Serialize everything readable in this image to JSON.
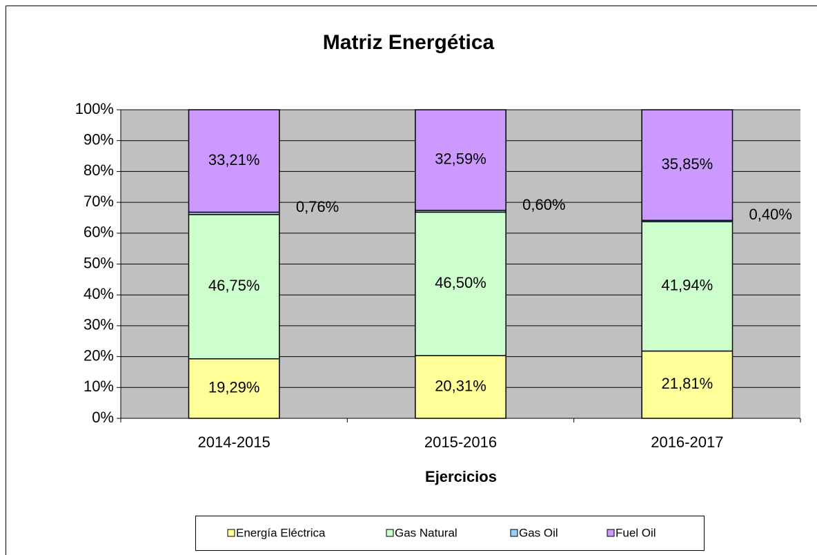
{
  "chart_data": {
    "type": "stacked_bar",
    "title": "Matriz Energética",
    "x_label": "Ejercicios",
    "categories": [
      "2014-2015",
      "2015-2016",
      "2016-2017"
    ],
    "series": [
      {
        "name": "Energía Eléctrica",
        "color": "#ffff99",
        "values": [
          19.29,
          20.31,
          21.81
        ],
        "value_labels": [
          "19,29%",
          "20,31%",
          "21,81%"
        ]
      },
      {
        "name": "Gas Natural",
        "color": "#ccffcc",
        "values": [
          46.75,
          46.5,
          41.94
        ],
        "value_labels": [
          "46,75%",
          "46,50%",
          "41,94%"
        ]
      },
      {
        "name": "Gas Oil",
        "color": "#99ccff",
        "values": [
          0.76,
          0.6,
          0.4
        ],
        "value_labels": [
          "0,76%",
          "0,60%",
          "0,40%"
        ]
      },
      {
        "name": "Fuel Oil",
        "color": "#cc99ff",
        "values": [
          33.21,
          32.59,
          35.85
        ],
        "value_labels": [
          "33,21%",
          "32,59%",
          "35,85%"
        ]
      }
    ],
    "ylim": [
      0,
      100
    ],
    "yticks": [
      {
        "value": 0,
        "label": "0%"
      },
      {
        "value": 10,
        "label": "10%"
      },
      {
        "value": 20,
        "label": "20%"
      },
      {
        "value": 30,
        "label": "30%"
      },
      {
        "value": 40,
        "label": "40%"
      },
      {
        "value": 50,
        "label": "50%"
      },
      {
        "value": 60,
        "label": "60%"
      },
      {
        "value": 70,
        "label": "70%"
      },
      {
        "value": 80,
        "label": "80%"
      },
      {
        "value": 90,
        "label": "90%"
      },
      {
        "value": 100,
        "label": "100%"
      }
    ],
    "grid": true,
    "plot_background": "#c0c0c0",
    "legend": "bottom"
  }
}
